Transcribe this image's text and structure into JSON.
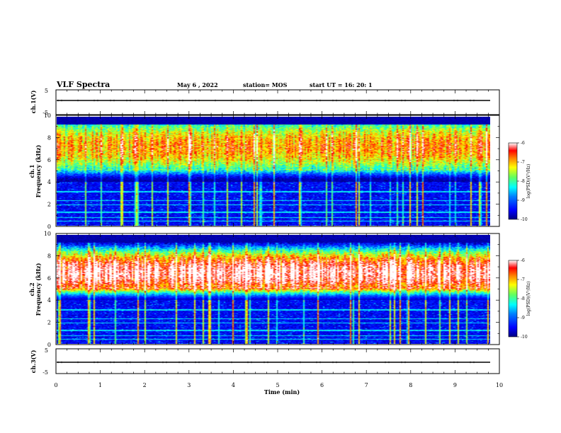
{
  "header": {
    "title": "VLF Spectra",
    "date": "May 6 , 2022",
    "station": "station= MOS",
    "start": "start UT = 16: 20: 1"
  },
  "chart_data": [
    {
      "type": "line",
      "panel": "waveform-top",
      "ylabel": "ch.1(V)",
      "yticks": [
        "5",
        "-5"
      ],
      "ylim": [
        -5,
        5
      ],
      "baseline": 0
    },
    {
      "type": "heatmap",
      "panel": "spectrogram-ch1",
      "ylabel_line1": "ch.1",
      "ylabel_line2": "Frequency (kHz)",
      "yticks": [
        "0",
        "2",
        "4",
        "6",
        "8",
        "10"
      ],
      "ylim": [
        0,
        10
      ],
      "xlim": [
        0,
        9.85
      ],
      "intense_band_khz": [
        5.5,
        9
      ],
      "background_floor_khz": 4,
      "colorbar": {
        "label": "log(PSD)(V²/Hz)",
        "ticks": [
          "-6",
          "-7",
          "-8",
          "-9",
          "-10"
        ],
        "range": [
          -10,
          -6
        ]
      }
    },
    {
      "type": "heatmap",
      "panel": "spectrogram-ch2",
      "ylabel_line1": "ch.2",
      "ylabel_line2": "Frequency (kHz)",
      "yticks": [
        "0",
        "2",
        "4",
        "6",
        "8",
        "10"
      ],
      "ylim": [
        0,
        10
      ],
      "xlim": [
        0,
        9.85
      ],
      "intense_band_khz": [
        5,
        8
      ],
      "background_floor_khz": 4,
      "colorbar": {
        "label": "log(PSD)(V²/Hz)",
        "ticks": [
          "-6",
          "-7",
          "-8",
          "-9",
          "-10"
        ],
        "range": [
          -10,
          -6
        ]
      }
    },
    {
      "type": "line",
      "panel": "waveform-bottom",
      "ylabel": "ch.3(V)",
      "yticks": [
        "5",
        "-5"
      ],
      "ylim": [
        -5,
        5
      ],
      "baseline": 0
    }
  ],
  "xaxis": {
    "label": "Time (min)",
    "ticks": [
      "0",
      "1",
      "2",
      "3",
      "4",
      "5",
      "6",
      "7",
      "8",
      "9",
      "10"
    ],
    "range": [
      0,
      10
    ]
  },
  "colors": {
    "jet": [
      "#000080",
      "#0000ff",
      "#0080ff",
      "#00ffff",
      "#80ff80",
      "#ffff00",
      "#ff8000",
      "#ff0000",
      "#ffffff"
    ]
  }
}
